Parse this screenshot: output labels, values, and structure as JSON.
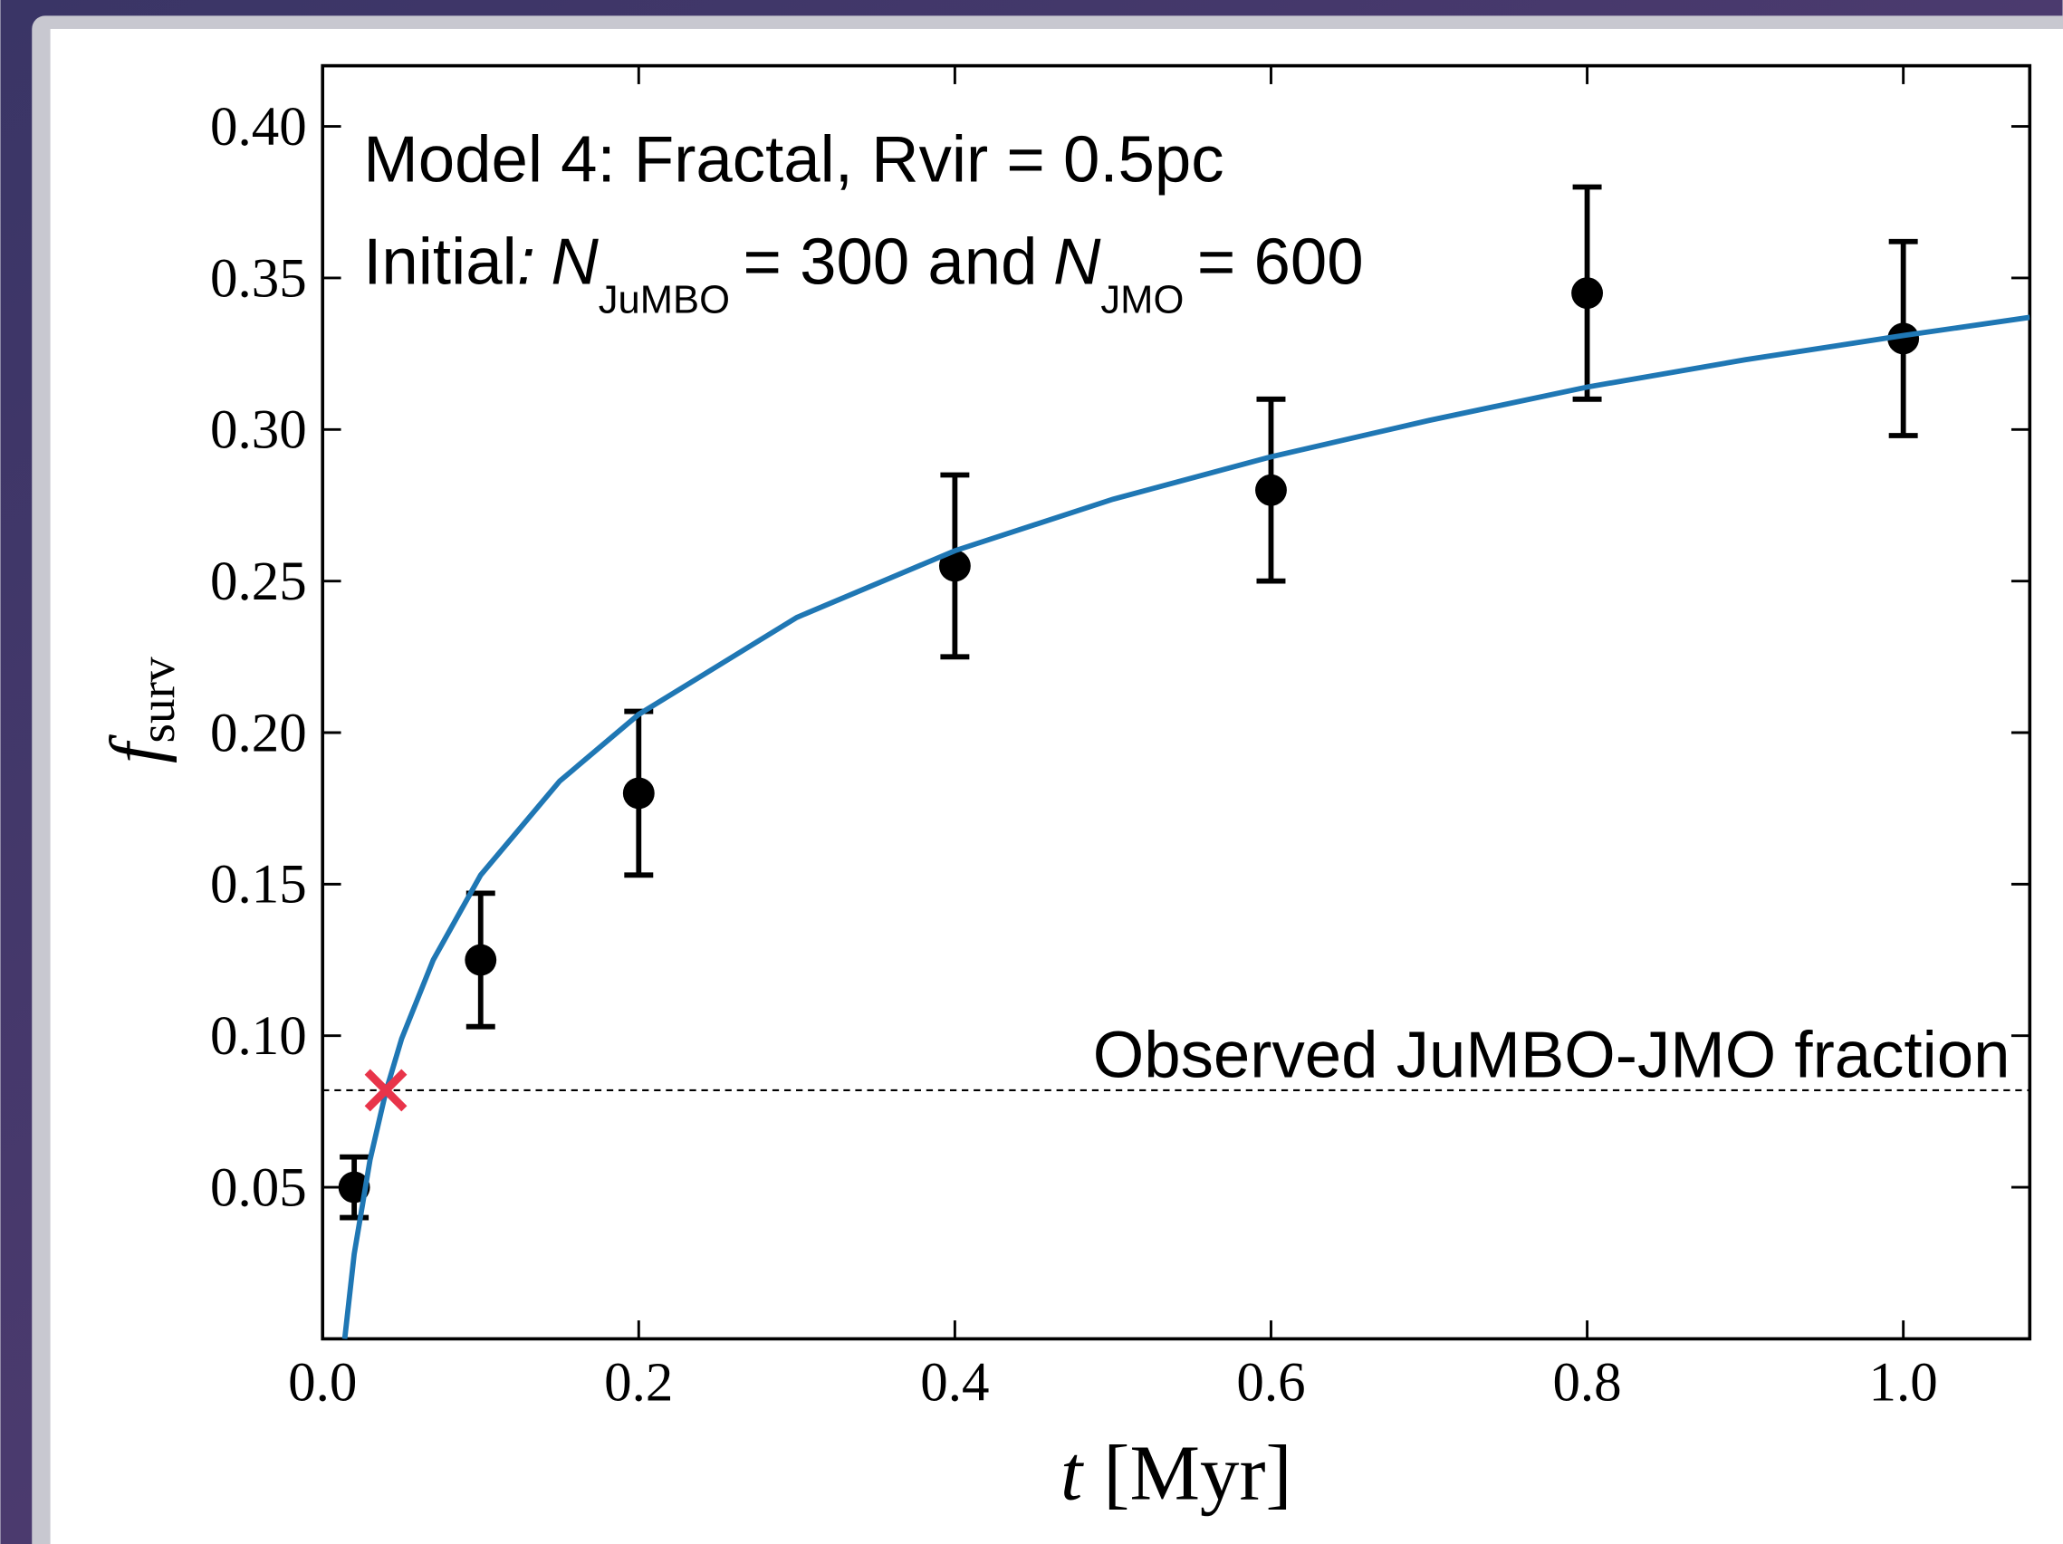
{
  "chart_data": {
    "type": "line",
    "annotations": {
      "line1": "Model 4: Fractal, Rvir = 0.5pc",
      "line2": {
        "prefix": "Initial",
        "colon": ":",
        "n1": "N",
        "sub1": "JuMBO",
        "mid": "= 300 and",
        "n2": "N",
        "sub2": "JMO",
        "suffix": "= 600"
      }
    },
    "xlabel": {
      "var": "t",
      "unit": "[Myr]"
    },
    "ylabel": {
      "var": "f",
      "sub": "surv"
    },
    "xlim": [
      0,
      1.08
    ],
    "ylim": [
      0,
      0.42
    ],
    "xticks": [
      {
        "value": 0,
        "label": "0.0"
      },
      0.2,
      0.4,
      0.6,
      0.8,
      {
        "value": 1,
        "label": "1.0"
      }
    ],
    "yticks": [
      0.05,
      {
        "value": 0.1,
        "label": "0.10"
      },
      0.15,
      {
        "value": 0.2,
        "label": "0.20"
      },
      0.25,
      {
        "value": 0.3,
        "label": "0.30"
      },
      0.35,
      {
        "value": 0.4,
        "label": "0.40"
      }
    ],
    "series": [
      {
        "type": "errorbar",
        "color": "#000000",
        "x": [
          0.02,
          0.1,
          0.2,
          0.4,
          0.6,
          0.8,
          1.0
        ],
        "values": [
          0.05,
          0.125,
          0.18,
          0.255,
          0.28,
          0.345,
          0.33
        ],
        "errors": [
          0.01,
          0.022,
          0.027,
          0.03,
          0.03,
          0.035,
          0.032
        ]
      },
      {
        "type": "line",
        "color": "#1f77b4",
        "x": [
          0.014,
          0.02,
          0.03,
          0.04,
          0.05,
          0.07,
          0.1,
          0.15,
          0.2,
          0.3,
          0.4,
          0.5,
          0.6,
          0.7,
          0.8,
          0.9,
          1.0,
          1.08
        ],
        "values": [
          0.0,
          0.028,
          0.059,
          0.0815,
          0.099,
          0.125,
          0.153,
          0.184,
          0.206,
          0.238,
          0.26,
          0.277,
          0.291,
          0.303,
          0.314,
          0.323,
          0.331,
          0.337
        ]
      }
    ],
    "hline": {
      "value": 0.082,
      "label": "Observed JuMBO-JMO fraction"
    },
    "marker": {
      "x": 0.04,
      "y": 0.082,
      "color": "#e8344a"
    }
  }
}
